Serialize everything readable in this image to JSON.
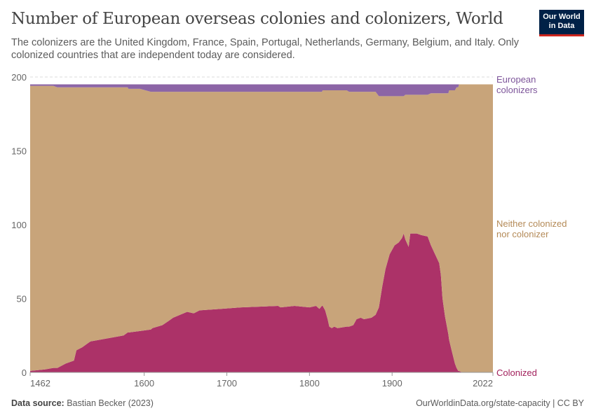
{
  "title": "Number of European overseas colonies and colonizers, World",
  "subtitle": "The colonizers are the United Kingdom, France, Spain, Portugal, Netherlands, Germany, Belgium, and Italy. Only colonized countries that are independent today are considered.",
  "logo": "Our World in Data",
  "footer": {
    "source_label": "Data source:",
    "source": "Bastian Becker (2023)",
    "right": "OurWorldinData.org/state-capacity | CC BY"
  },
  "colors": {
    "colonized": "#ac3268",
    "neither": "#c8a47a",
    "colonizers": "#8c65a6"
  },
  "chart_data": {
    "type": "area",
    "stacked": true,
    "title": "Number of European overseas colonies and colonizers, World",
    "xlim": [
      1462,
      2022
    ],
    "ylim": [
      0,
      200
    ],
    "x_ticks": [
      "1462",
      "1600",
      "1700",
      "1800",
      "1900",
      "2022"
    ],
    "y_ticks": [
      "0",
      "50",
      "100",
      "150",
      "200"
    ],
    "grid": "horizontal dashed",
    "legend": "right, inline labels",
    "x": [
      1462,
      1480,
      1490,
      1495,
      1505,
      1515,
      1518,
      1525,
      1530,
      1535,
      1555,
      1565,
      1575,
      1580,
      1581,
      1595,
      1608,
      1610,
      1622,
      1630,
      1635,
      1652,
      1660,
      1667,
      1693,
      1717,
      1762,
      1765,
      1782,
      1800,
      1808,
      1812,
      1815,
      1816,
      1819,
      1822,
      1824,
      1827,
      1830,
      1834,
      1845,
      1848,
      1853,
      1857,
      1862,
      1866,
      1875,
      1880,
      1884,
      1888,
      1892,
      1897,
      1903,
      1908,
      1912,
      1914,
      1916,
      1920,
      1922,
      1930,
      1935,
      1943,
      1947,
      1952,
      1957,
      1959,
      1961,
      1964,
      1968,
      1969,
      1972,
      1976,
      1978,
      1980,
      1981,
      1985,
      2022
    ],
    "series": [
      {
        "name": "Colonized",
        "values": [
          1,
          2,
          3,
          3,
          6,
          8,
          15,
          17,
          19,
          21,
          23,
          24,
          25,
          27,
          27,
          28,
          29,
          30,
          32,
          35,
          37,
          41,
          40,
          42,
          43,
          44,
          45,
          44,
          45,
          44,
          45,
          43,
          45,
          45,
          42,
          36,
          31,
          30,
          31,
          30,
          31,
          31,
          32,
          36,
          37,
          36,
          37,
          39,
          44,
          58,
          70,
          80,
          86,
          88,
          91,
          94,
          90,
          85,
          94,
          94,
          93,
          92,
          86,
          80,
          74,
          66,
          50,
          38,
          26,
          22,
          15,
          6,
          3,
          1,
          1,
          0,
          0
        ]
      },
      {
        "name": "Neither colonized nor colonizer",
        "values": [
          193,
          192,
          191,
          190,
          187,
          185,
          178,
          176,
          174,
          172,
          170,
          169,
          168,
          166,
          165,
          164,
          161,
          160,
          158,
          155,
          153,
          149,
          150,
          148,
          147,
          146,
          145,
          146,
          145,
          146,
          145,
          147,
          145,
          146,
          149,
          155,
          160,
          161,
          160,
          161,
          160,
          159,
          158,
          154,
          153,
          154,
          153,
          151,
          143,
          129,
          117,
          107,
          101,
          99,
          96,
          93,
          98,
          103,
          94,
          94,
          95,
          96,
          103,
          109,
          115,
          123,
          139,
          151,
          163,
          169,
          176,
          185,
          190,
          192,
          194,
          195,
          195
        ]
      },
      {
        "name": "European colonizers",
        "values": [
          1,
          1,
          1,
          2,
          2,
          2,
          2,
          2,
          2,
          2,
          2,
          2,
          2,
          2,
          3,
          3,
          5,
          5,
          5,
          5,
          5,
          5,
          5,
          5,
          5,
          5,
          5,
          5,
          5,
          5,
          5,
          5,
          5,
          4,
          4,
          4,
          4,
          4,
          4,
          4,
          4,
          5,
          5,
          5,
          5,
          5,
          5,
          5,
          8,
          8,
          8,
          8,
          8,
          8,
          8,
          8,
          7,
          7,
          7,
          7,
          7,
          7,
          6,
          6,
          6,
          6,
          6,
          6,
          6,
          4,
          4,
          4,
          2,
          2,
          0,
          0,
          0
        ]
      }
    ],
    "labels": {
      "colonizers": "European colonizers",
      "neither": "Neither colonized nor colonizer",
      "colonized": "Colonized"
    }
  }
}
